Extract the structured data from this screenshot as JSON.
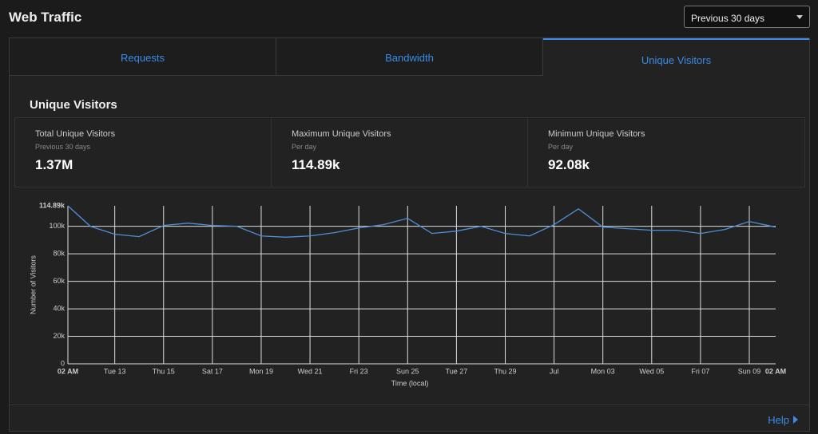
{
  "header": {
    "title": "Web Traffic",
    "range_select": "Previous 30 days"
  },
  "tabs": [
    "Requests",
    "Bandwidth",
    "Unique Visitors"
  ],
  "section": {
    "title": "Unique Visitors"
  },
  "stats": [
    {
      "label": "Total Unique Visitors",
      "sub": "Previous 30 days",
      "value": "1.37M"
    },
    {
      "label": "Maximum Unique Visitors",
      "sub": "Per day",
      "value": "114.89k"
    },
    {
      "label": "Minimum Unique Visitors",
      "sub": "Per day",
      "value": "92.08k"
    }
  ],
  "chart_data": {
    "type": "line",
    "xlabel": "Time (local)",
    "ylabel": "Number of Visitors",
    "color": "#4f8fd8",
    "grid": true,
    "x": [
      0,
      0.92,
      1.92,
      2.92,
      3.92,
      4.92,
      5.92,
      6.92,
      7.92,
      8.92,
      9.92,
      10.92,
      11.92,
      12.92,
      13.92,
      14.92,
      15.92,
      16.92,
      17.92,
      18.92,
      19.92,
      20.92,
      21.92,
      22.92,
      23.92,
      24.92,
      25.92,
      26.92,
      27.92,
      29
    ],
    "values": [
      114890,
      100000,
      94200,
      92500,
      100600,
      102300,
      100600,
      100000,
      93000,
      92080,
      93000,
      95400,
      98800,
      101200,
      105800,
      94800,
      96500,
      100000,
      94800,
      93000,
      101200,
      112700,
      99400,
      98300,
      97100,
      97100,
      94800,
      97700,
      103500,
      99400
    ],
    "xlim": [
      0,
      29
    ],
    "xticks": [
      {
        "value": 0,
        "label": "02 AM"
      },
      {
        "value": 1.92,
        "label": "Tue 13"
      },
      {
        "value": 3.92,
        "label": "Thu 15"
      },
      {
        "value": 5.92,
        "label": "Sat 17"
      },
      {
        "value": 7.92,
        "label": "Mon 19"
      },
      {
        "value": 9.92,
        "label": "Wed 21"
      },
      {
        "value": 11.92,
        "label": "Fri 23"
      },
      {
        "value": 13.92,
        "label": "Sun 25"
      },
      {
        "value": 15.92,
        "label": "Tue 27"
      },
      {
        "value": 17.92,
        "label": "Thu 29"
      },
      {
        "value": 19.92,
        "label": "Jul"
      },
      {
        "value": 21.92,
        "label": "Mon 03"
      },
      {
        "value": 23.92,
        "label": "Wed 05"
      },
      {
        "value": 25.92,
        "label": "Fri 07"
      },
      {
        "value": 27.92,
        "label": "Sun 09"
      },
      {
        "value": 29,
        "label": "02 AM"
      }
    ],
    "ylim": [
      0,
      114890
    ],
    "yticks": [
      0,
      {
        "value": 20000,
        "label": "20k"
      },
      {
        "value": 40000,
        "label": "40k"
      },
      {
        "value": 60000,
        "label": "60k"
      },
      {
        "value": 80000,
        "label": "80k"
      },
      {
        "value": 100000,
        "label": "100k"
      },
      {
        "value": 114890,
        "label": "114.89k"
      }
    ]
  },
  "help": "Help"
}
